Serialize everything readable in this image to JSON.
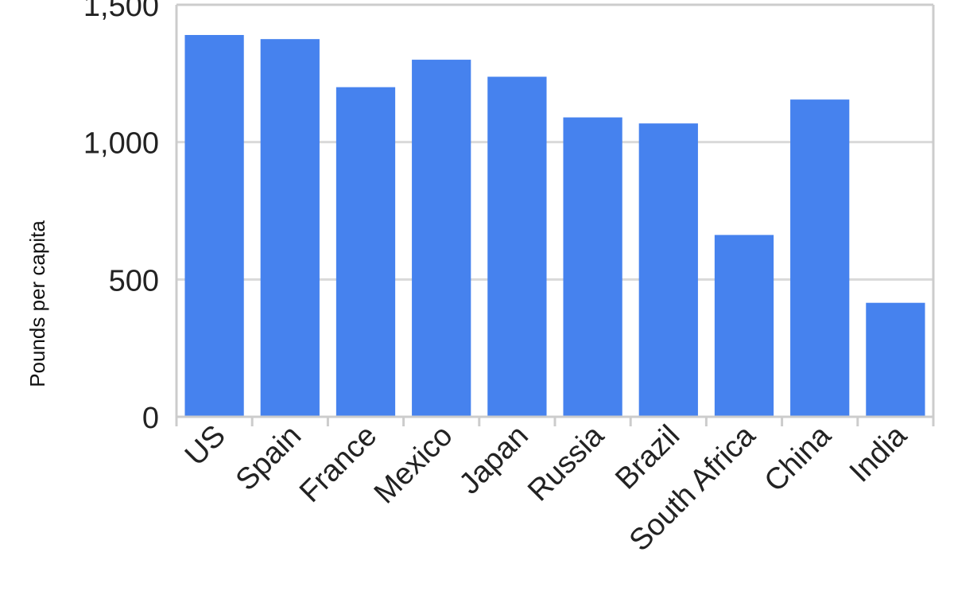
{
  "chart_data": {
    "type": "bar",
    "categories": [
      "US",
      "Spain",
      "France",
      "Mexico",
      "Japan",
      "Russia",
      "Brazil",
      "South Africa",
      "China",
      "India"
    ],
    "values": [
      1390,
      1375,
      1200,
      1300,
      1238,
      1090,
      1068,
      662,
      1155,
      415
    ],
    "title": "",
    "xlabel": "",
    "ylabel": "Pounds per capita",
    "ylim": [
      0,
      1500
    ],
    "yticks": [
      0,
      500,
      1000,
      1500
    ],
    "ytick_labels": [
      "0",
      "500",
      "1,000",
      "1,500"
    ],
    "grid": true,
    "bar_color": "#4682ee",
    "grid_color": "#d9d9d9",
    "axis_color": "#cccccc"
  }
}
